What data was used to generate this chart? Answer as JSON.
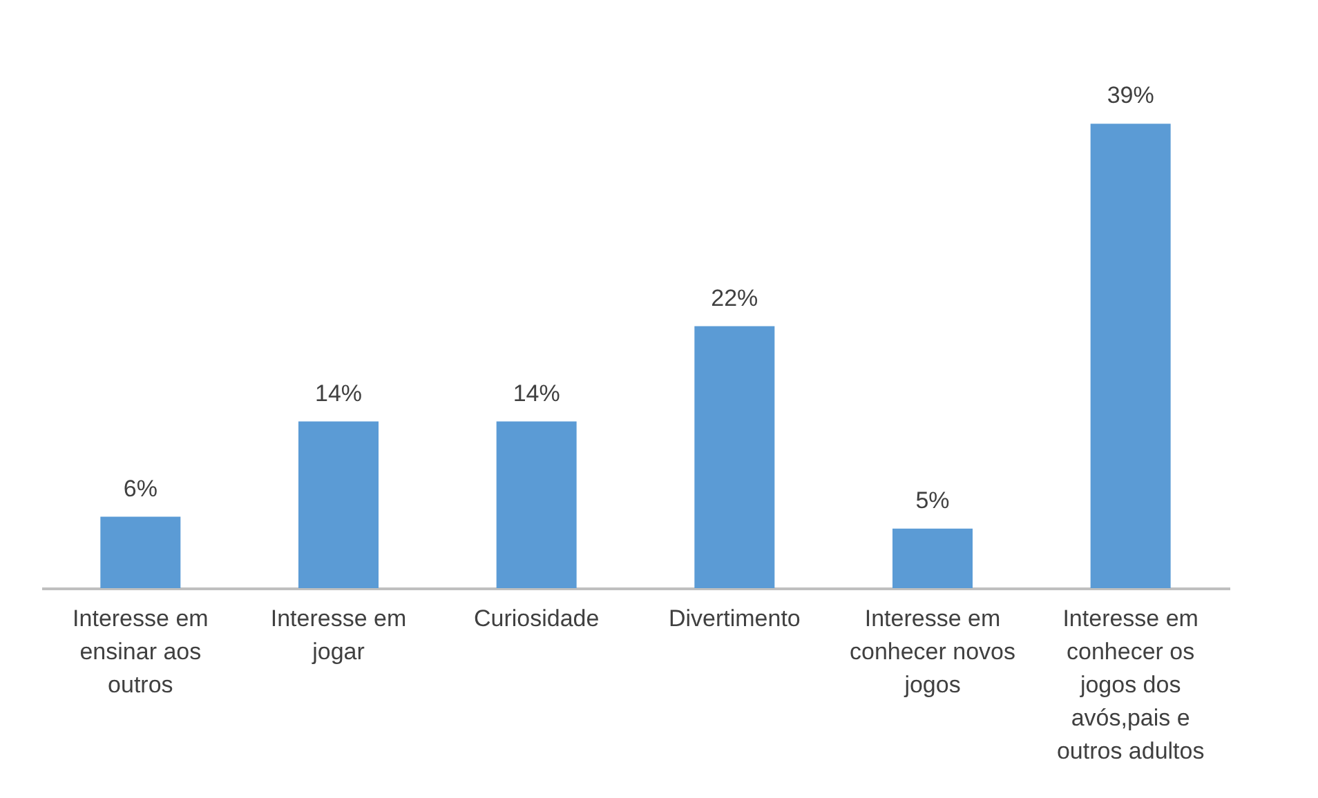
{
  "chart_data": {
    "type": "bar",
    "categories": [
      "Interesse em ensinar aos outros",
      "Interesse em jogar",
      "Curiosidade",
      "Divertimento",
      "Interesse em conhecer novos jogos",
      "Interesse em conhecer os jogos dos avós,pais e outros adultos"
    ],
    "values": [
      6,
      14,
      14,
      22,
      5,
      39
    ],
    "value_labels": [
      "6%",
      "14%",
      "14%",
      "22%",
      "5%",
      "39%"
    ],
    "color": "#5b9bd5",
    "grid": false
  }
}
